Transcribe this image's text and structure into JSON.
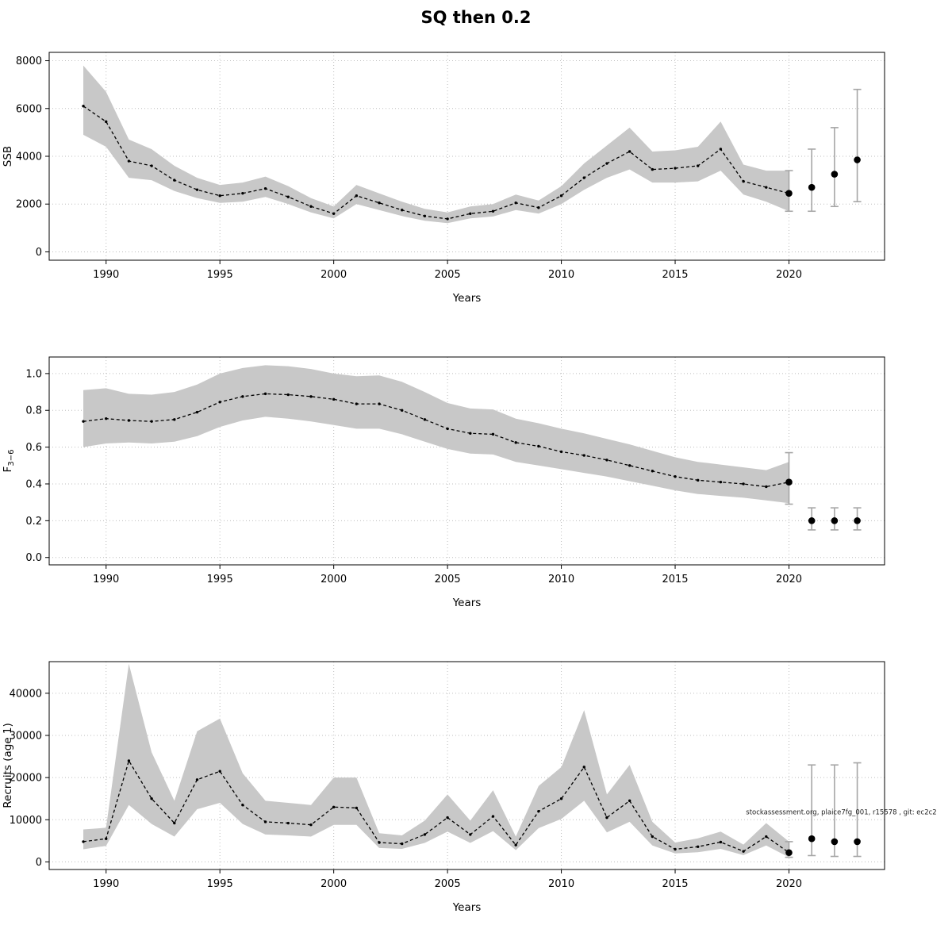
{
  "title": "SQ then 0.2",
  "colors": {
    "band": "#c8c8c8",
    "line": "#000000",
    "errorbar": "#a6a6a6",
    "grid": "#bdbdbd",
    "box": "#000000"
  },
  "chart_data": [
    {
      "type": "line",
      "ylabel": "SSB",
      "ylabel_sub": "",
      "xlabel": "Years",
      "xlim": [
        1987.5,
        2024.2
      ],
      "ylim": [
        -350,
        8350
      ],
      "xticks": [
        1990,
        1995,
        2000,
        2005,
        2010,
        2015,
        2020
      ],
      "xtick_labels": [
        "1990",
        "1995",
        "2000",
        "2005",
        "2010",
        "2015",
        "2020"
      ],
      "yticks": [
        0,
        2000,
        4000,
        6000,
        8000
      ],
      "ytick_labels": [
        "0",
        "2000",
        "4000",
        "6000",
        "8000"
      ],
      "years": [
        1989,
        1990,
        1991,
        1992,
        1993,
        1994,
        1995,
        1996,
        1997,
        1998,
        1999,
        2000,
        2001,
        2002,
        2003,
        2004,
        2005,
        2006,
        2007,
        2008,
        2009,
        2010,
        2011,
        2012,
        2013,
        2014,
        2015,
        2016,
        2017,
        2018,
        2019,
        2020
      ],
      "estimate": [
        6100,
        5450,
        3800,
        3600,
        3000,
        2600,
        2350,
        2450,
        2650,
        2300,
        1900,
        1600,
        2350,
        2050,
        1750,
        1500,
        1380,
        1600,
        1700,
        2050,
        1850,
        2350,
        3100,
        3700,
        4200,
        3450,
        3500,
        3600,
        4300,
        2950,
        2700,
        2450
      ],
      "lower": [
        4900,
        4400,
        3100,
        3000,
        2550,
        2250,
        2050,
        2100,
        2300,
        2000,
        1650,
        1400,
        2000,
        1750,
        1500,
        1300,
        1200,
        1400,
        1480,
        1750,
        1600,
        2000,
        2600,
        3100,
        3450,
        2900,
        2900,
        2950,
        3400,
        2400,
        2100,
        1700
      ],
      "upper": [
        7800,
        6700,
        4700,
        4300,
        3600,
        3100,
        2800,
        2900,
        3150,
        2750,
        2250,
        1900,
        2800,
        2450,
        2100,
        1800,
        1650,
        1900,
        2000,
        2400,
        2150,
        2750,
        3700,
        4450,
        5200,
        4200,
        4250,
        4400,
        5450,
        3650,
        3400,
        3400
      ],
      "forecast": {
        "years": [
          2020,
          2021,
          2022,
          2023
        ],
        "values": [
          2450,
          2700,
          3250,
          3850
        ],
        "lower": [
          1700,
          1700,
          1900,
          2100
        ],
        "upper": [
          3400,
          4300,
          5200,
          6800
        ]
      }
    },
    {
      "type": "line",
      "ylabel": "F",
      "ylabel_sub": "3−6",
      "xlabel": "Years",
      "xlim": [
        1987.5,
        2024.2
      ],
      "ylim": [
        -0.04,
        1.09
      ],
      "xticks": [
        1990,
        1995,
        2000,
        2005,
        2010,
        2015,
        2020
      ],
      "xtick_labels": [
        "1990",
        "1995",
        "2000",
        "2005",
        "2010",
        "2015",
        "2020"
      ],
      "yticks": [
        0.0,
        0.2,
        0.4,
        0.6,
        0.8,
        1.0
      ],
      "ytick_labels": [
        "0.0",
        "0.2",
        "0.4",
        "0.6",
        "0.8",
        "1.0"
      ],
      "years": [
        1989,
        1990,
        1991,
        1992,
        1993,
        1994,
        1995,
        1996,
        1997,
        1998,
        1999,
        2000,
        2001,
        2002,
        2003,
        2004,
        2005,
        2006,
        2007,
        2008,
        2009,
        2010,
        2011,
        2012,
        2013,
        2014,
        2015,
        2016,
        2017,
        2018,
        2019,
        2020
      ],
      "estimate": [
        0.74,
        0.755,
        0.745,
        0.74,
        0.75,
        0.79,
        0.845,
        0.875,
        0.89,
        0.885,
        0.875,
        0.86,
        0.835,
        0.835,
        0.8,
        0.75,
        0.7,
        0.675,
        0.67,
        0.625,
        0.605,
        0.575,
        0.555,
        0.53,
        0.5,
        0.47,
        0.44,
        0.42,
        0.41,
        0.4,
        0.385,
        0.41
      ],
      "lower": [
        0.6,
        0.62,
        0.625,
        0.62,
        0.63,
        0.66,
        0.71,
        0.745,
        0.765,
        0.755,
        0.74,
        0.72,
        0.7,
        0.7,
        0.67,
        0.63,
        0.59,
        0.565,
        0.56,
        0.52,
        0.5,
        0.48,
        0.46,
        0.44,
        0.415,
        0.39,
        0.365,
        0.345,
        0.335,
        0.325,
        0.31,
        0.295
      ],
      "upper": [
        0.91,
        0.92,
        0.89,
        0.885,
        0.9,
        0.94,
        1.0,
        1.03,
        1.045,
        1.04,
        1.025,
        1.0,
        0.985,
        0.99,
        0.955,
        0.9,
        0.84,
        0.81,
        0.805,
        0.755,
        0.73,
        0.7,
        0.675,
        0.645,
        0.615,
        0.58,
        0.545,
        0.52,
        0.505,
        0.49,
        0.475,
        0.52
      ],
      "forecast": {
        "years": [
          2020,
          2021,
          2022,
          2023
        ],
        "values": [
          0.41,
          0.2,
          0.2,
          0.2
        ],
        "lower": [
          0.29,
          0.15,
          0.15,
          0.15
        ],
        "upper": [
          0.57,
          0.27,
          0.27,
          0.27
        ]
      }
    },
    {
      "type": "line",
      "ylabel": "Recruits (age 1)",
      "ylabel_sub": "",
      "xlabel": "Years",
      "xlim": [
        1987.5,
        2024.2
      ],
      "ylim": [
        -1800,
        47500
      ],
      "xticks": [
        1990,
        1995,
        2000,
        2005,
        2010,
        2015,
        2020
      ],
      "xtick_labels": [
        "1990",
        "1995",
        "2000",
        "2005",
        "2010",
        "2015",
        "2020"
      ],
      "yticks": [
        0,
        10000,
        20000,
        30000,
        40000
      ],
      "ytick_labels": [
        "0",
        "10000",
        "20000",
        "30000",
        "40000"
      ],
      "years": [
        1989,
        1990,
        1991,
        1992,
        1993,
        1994,
        1995,
        1996,
        1997,
        1998,
        1999,
        2000,
        2001,
        2002,
        2003,
        2004,
        2005,
        2006,
        2007,
        2008,
        2009,
        2010,
        2011,
        2012,
        2013,
        2014,
        2015,
        2016,
        2017,
        2018,
        2019,
        2020
      ],
      "estimate": [
        4800,
        5500,
        24000,
        15000,
        9200,
        19500,
        21500,
        13500,
        9500,
        9200,
        8800,
        13000,
        12800,
        4600,
        4300,
        6500,
        10500,
        6500,
        10800,
        4000,
        12000,
        15000,
        22500,
        10500,
        14500,
        6000,
        3000,
        3600,
        4700,
        2500,
        6000,
        2200
      ],
      "lower": [
        3000,
        3800,
        13500,
        9000,
        6000,
        12500,
        14000,
        9000,
        6500,
        6300,
        6000,
        8800,
        8800,
        3300,
        3100,
        4500,
        7200,
        4500,
        7300,
        2800,
        8000,
        10200,
        14500,
        7000,
        9500,
        3900,
        2000,
        2300,
        3100,
        1600,
        3900,
        1100
      ],
      "upper": [
        7700,
        8100,
        47000,
        26000,
        14500,
        31000,
        34000,
        21000,
        14500,
        14000,
        13500,
        20000,
        20000,
        6800,
        6300,
        9800,
        16000,
        9800,
        17000,
        6000,
        18000,
        22500,
        36000,
        16000,
        23000,
        9500,
        4600,
        5600,
        7200,
        4100,
        9200,
        4800
      ],
      "forecast": {
        "years": [
          2020,
          2021,
          2022,
          2023
        ],
        "values": [
          2200,
          5500,
          4800,
          4800
        ],
        "lower": [
          1100,
          1500,
          1300,
          1300
        ],
        "upper": [
          4800,
          23000,
          23000,
          23500
        ]
      },
      "annotation": {
        "text": "stockassessment.org, plaice7fg_001, r15578 , git: ec2c2",
        "x": 2022.3,
        "y": 11300
      }
    }
  ]
}
